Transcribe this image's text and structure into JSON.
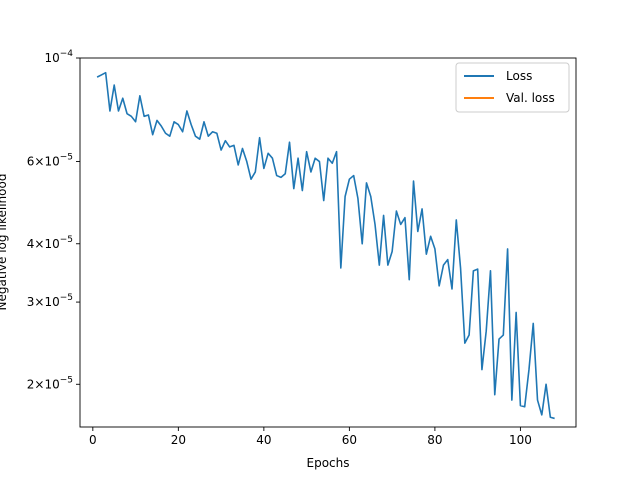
{
  "chart_data": {
    "type": "line",
    "xlabel": "Epochs",
    "ylabel": "Negative log likelihood",
    "y_scale": "log",
    "xlim": [
      -3,
      113
    ],
    "ylim": [
      1.62e-05,
      0.0001
    ],
    "x_ticks": [
      0,
      20,
      40,
      60,
      80,
      100
    ],
    "y_ticks": [
      {
        "value": 2e-05,
        "mant": "2",
        "exp": "−5"
      },
      {
        "value": 3e-05,
        "mant": "3",
        "exp": "−5"
      },
      {
        "value": 4e-05,
        "mant": "4",
        "exp": "−5"
      },
      {
        "value": 6e-05,
        "mant": "6",
        "exp": "−5"
      },
      {
        "value": 0.0001,
        "mant": "10",
        "exp": "−4",
        "plain": true
      }
    ],
    "legend_position": "top-right",
    "series": [
      {
        "name": "Loss",
        "color": "#1f77b4",
        "x": [
          1,
          2,
          3,
          4,
          5,
          6,
          7,
          8,
          9,
          10,
          11,
          12,
          13,
          14,
          15,
          16,
          17,
          18,
          19,
          20,
          21,
          22,
          23,
          24,
          25,
          26,
          27,
          28,
          29,
          30,
          31,
          32,
          33,
          34,
          35,
          36,
          37,
          38,
          39,
          40,
          41,
          42,
          43,
          44,
          45,
          46,
          47,
          48,
          49,
          50,
          51,
          52,
          53,
          54,
          55,
          56,
          57,
          58,
          59,
          60,
          61,
          62,
          63,
          64,
          65,
          66,
          67,
          68,
          69,
          70,
          71,
          72,
          73,
          74,
          75,
          76,
          77,
          78,
          79,
          80,
          81,
          82,
          83,
          84,
          85,
          86,
          87,
          88,
          89,
          90,
          91,
          92,
          93,
          94,
          95,
          96,
          97,
          98,
          99,
          100,
          101,
          102,
          103,
          104,
          105,
          106,
          107,
          108
        ],
        "y": [
          9.1e-05,
          9.2e-05,
          9.3e-05,
          7.7e-05,
          8.75e-05,
          7.7e-05,
          8.2e-05,
          7.6e-05,
          7.5e-05,
          7.3e-05,
          8.3e-05,
          7.5e-05,
          7.55e-05,
          6.85e-05,
          7.35e-05,
          7.15e-05,
          6.9e-05,
          6.8e-05,
          7.3e-05,
          7.2e-05,
          6.95e-05,
          7.7e-05,
          7.2e-05,
          6.8e-05,
          6.7e-05,
          7.3e-05,
          6.8e-05,
          6.95e-05,
          6.9e-05,
          6.35e-05,
          6.65e-05,
          6.45e-05,
          6.5e-05,
          5.9e-05,
          6.4e-05,
          6e-05,
          5.5e-05,
          5.7e-05,
          6.75e-05,
          5.8e-05,
          6.25e-05,
          6.1e-05,
          5.6e-05,
          5.55e-05,
          5.65e-05,
          6.6e-05,
          5.25e-05,
          6.1e-05,
          5.2e-05,
          6.3e-05,
          5.7e-05,
          6.1e-05,
          6e-05,
          4.95e-05,
          6.1e-05,
          5.95e-05,
          6.3e-05,
          3.55e-05,
          5.05e-05,
          5.5e-05,
          5.6e-05,
          5e-05,
          4e-05,
          5.4e-05,
          5.05e-05,
          4.4e-05,
          3.6e-05,
          4.6e-05,
          3.6e-05,
          3.85e-05,
          4.7e-05,
          4.4e-05,
          4.55e-05,
          3.35e-05,
          5.45e-05,
          4.25e-05,
          4.75e-05,
          3.8e-05,
          4.15e-05,
          3.9e-05,
          3.25e-05,
          3.6e-05,
          3.7e-05,
          3.2e-05,
          4.5e-05,
          3.55e-05,
          2.45e-05,
          2.55e-05,
          3.5e-05,
          3.53e-05,
          2.15e-05,
          2.6e-05,
          3.5e-05,
          1.9e-05,
          2.5e-05,
          2.55e-05,
          3.9e-05,
          1.85e-05,
          2.85e-05,
          1.8e-05,
          1.79e-05,
          2.15e-05,
          2.7e-05,
          1.85e-05,
          1.72e-05,
          2e-05,
          1.7e-05,
          1.69e-05
        ]
      },
      {
        "name": "Val. loss",
        "color": "#ff7f0e",
        "x": [],
        "y": []
      }
    ]
  }
}
